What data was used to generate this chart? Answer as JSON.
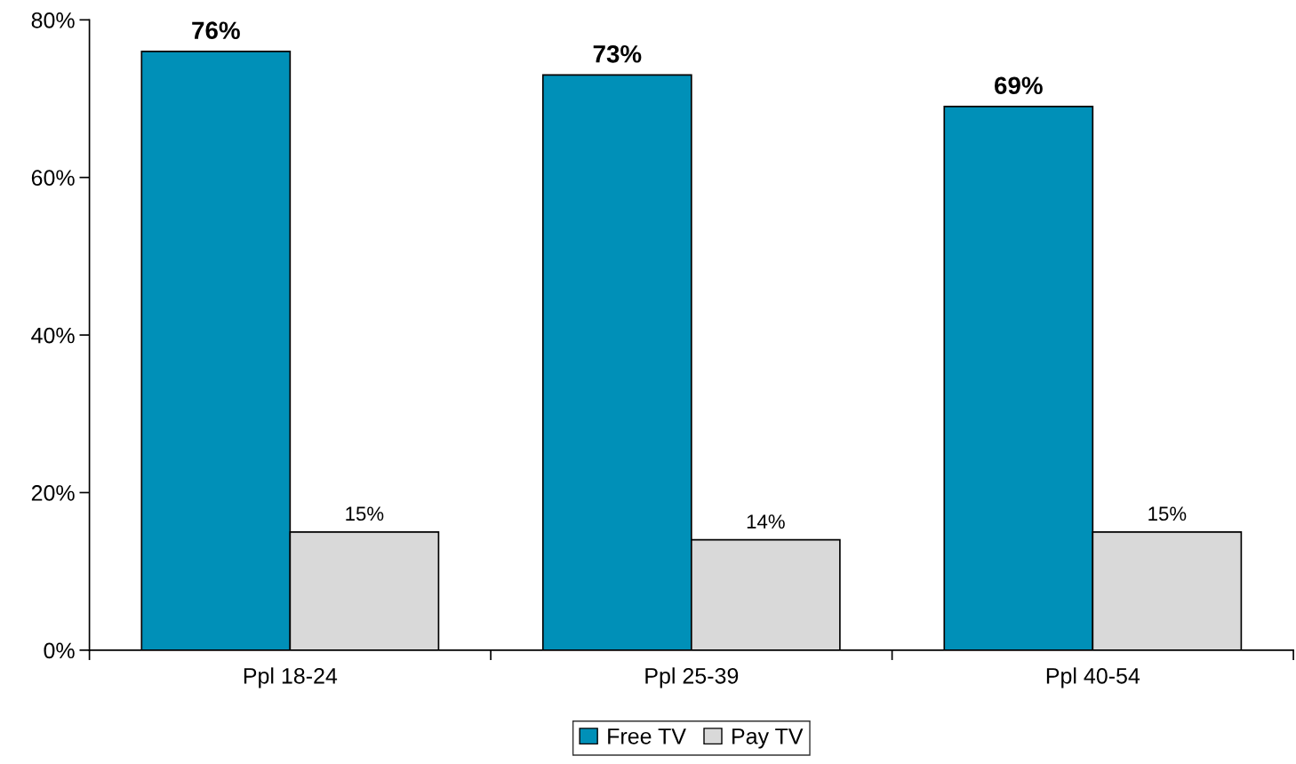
{
  "chart_data": {
    "type": "bar",
    "categories": [
      "Ppl 18-24",
      "Ppl 25-39",
      "Ppl 40-54"
    ],
    "series": [
      {
        "name": "Free TV",
        "color": "#0090b8",
        "values": [
          76,
          73,
          69
        ],
        "value_labels": [
          "76%",
          "73%",
          "69%"
        ]
      },
      {
        "name": "Pay TV",
        "color": "#d9d9d9",
        "values": [
          15,
          14,
          15
        ],
        "value_labels": [
          "15%",
          "14%",
          "15%"
        ]
      }
    ],
    "ylim": [
      0,
      80
    ],
    "yticks": [
      {
        "value": 0,
        "label": "0%"
      },
      {
        "value": 20,
        "label": "20%"
      },
      {
        "value": 40,
        "label": "40%"
      },
      {
        "value": 60,
        "label": "60%"
      },
      {
        "value": 80,
        "label": "80%"
      }
    ],
    "grid": false,
    "legend": "bottom"
  }
}
